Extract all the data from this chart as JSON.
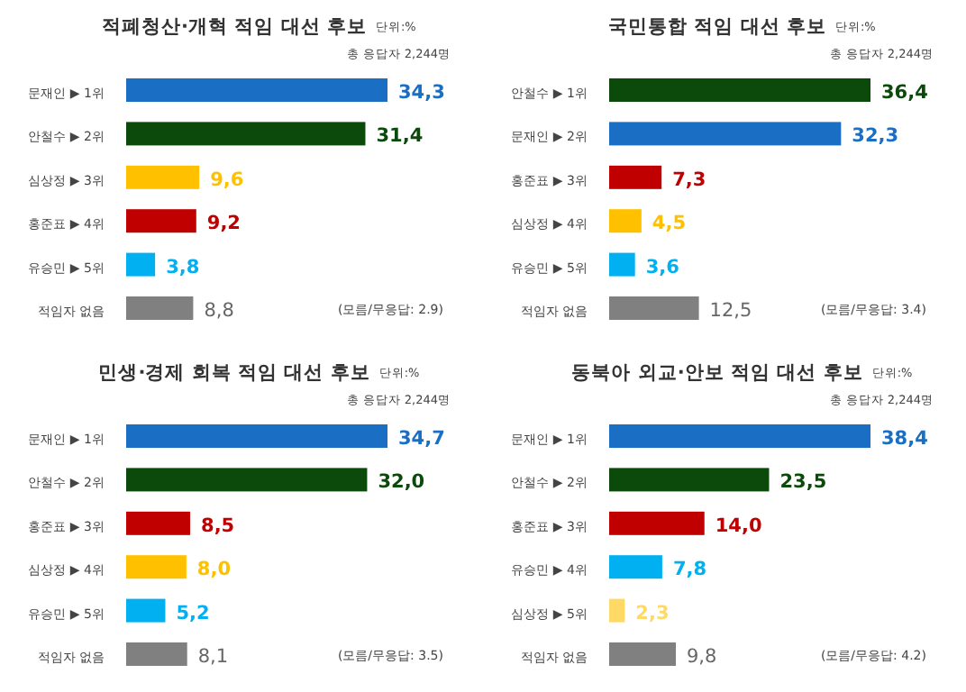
{
  "chart_data": [
    {
      "type": "bar",
      "orientation": "horizontal",
      "title": "적폐청산·개혁 적임 대선 후보",
      "annotations": [
        "단위:%",
        "총 응답자 2,244명",
        "(모름/무응답: 2.9)"
      ],
      "categories": [
        "문재인 ▶ 1위",
        "안철수 ▶ 2위",
        "심상정 ▶ 3위",
        "홍준표 ▶ 4위",
        "유승민 ▶ 5위",
        "적임자 없음"
      ],
      "values": [
        34.3,
        31.4,
        9.6,
        9.2,
        3.8,
        8.8
      ],
      "value_labels": [
        "34,3",
        "31,4",
        "9,6",
        "9,2",
        "3,8",
        "8,8"
      ],
      "colors": [
        "#1a6fc4",
        "#0b4a0b",
        "#ffc000",
        "#c00000",
        "#00b0f0",
        "#808080"
      ]
    },
    {
      "type": "bar",
      "orientation": "horizontal",
      "title": "국민통합 적임 대선 후보",
      "annotations": [
        "단위:%",
        "총 응답자 2,244명",
        "(모름/무응답: 3.4)"
      ],
      "categories": [
        "안철수 ▶ 1위",
        "문재인 ▶ 2위",
        "홍준표 ▶ 3위",
        "심상정 ▶ 4위",
        "유승민 ▶ 5위",
        "적임자 없음"
      ],
      "values": [
        36.4,
        32.3,
        7.3,
        4.5,
        3.6,
        12.5
      ],
      "value_labels": [
        "36,4",
        "32,3",
        "7,3",
        "4,5",
        "3,6",
        "12,5"
      ],
      "colors": [
        "#0b4a0b",
        "#1a6fc4",
        "#c00000",
        "#ffc000",
        "#00b0f0",
        "#808080"
      ]
    },
    {
      "type": "bar",
      "orientation": "horizontal",
      "title": "민생·경제 회복 적임 대선 후보",
      "annotations": [
        "단위:%",
        "총 응답자 2,244명",
        "(모름/무응답: 3.5)"
      ],
      "categories": [
        "문재인 ▶ 1위",
        "안철수 ▶ 2위",
        "홍준표 ▶ 3위",
        "심상정 ▶ 4위",
        "유승민 ▶ 5위",
        "적임자 없음"
      ],
      "values": [
        34.7,
        32.0,
        8.5,
        8.0,
        5.2,
        8.1
      ],
      "value_labels": [
        "34,7",
        "32,0",
        "8,5",
        "8,0",
        "5,2",
        "8,1"
      ],
      "colors": [
        "#1a6fc4",
        "#0b4a0b",
        "#c00000",
        "#ffc000",
        "#00b0f0",
        "#808080"
      ]
    },
    {
      "type": "bar",
      "orientation": "horizontal",
      "title": "동북아 외교·안보 적임 대선 후보",
      "annotations": [
        "단위:%",
        "총 응답자 2,244명",
        "(모름/무응답: 4.2)"
      ],
      "categories": [
        "문재인 ▶ 1위",
        "안철수 ▶ 2위",
        "홍준표 ▶ 3위",
        "유승민 ▶ 4위",
        "심상정 ▶ 5위",
        "적임자 없음"
      ],
      "values": [
        38.4,
        23.5,
        14.0,
        7.8,
        2.3,
        9.8
      ],
      "value_labels": [
        "38,4",
        "23,5",
        "14,0",
        "7,8",
        "2,3",
        "9,8"
      ],
      "colors": [
        "#1a6fc4",
        "#0b4a0b",
        "#c00000",
        "#00b0f0",
        "#ffd966",
        "#808080"
      ]
    }
  ]
}
